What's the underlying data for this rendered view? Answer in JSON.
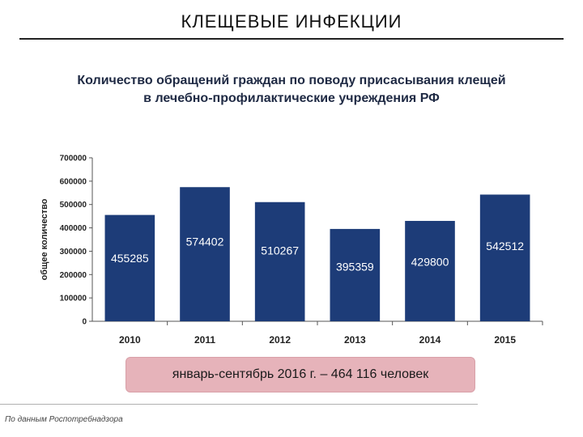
{
  "slide": {
    "title": "КЛЕЩЕВЫЕ ИНФЕКЦИИ",
    "heading_line1": "Количество обращений граждан по поводу присасывания клещей",
    "heading_line2": "в лечебно-профилактические учреждения РФ",
    "note": "январь-сентябрь 2016 г. – 464 116 человек",
    "source": "По данным Роспотребнадзора"
  },
  "colors": {
    "bar": "#1d3c78",
    "bar_label": "#ffffff",
    "note_background": "#e6b3ba"
  },
  "chart_data": {
    "type": "bar",
    "title": "",
    "xlabel": "",
    "ylabel": "общее количество",
    "ylim": [
      0,
      700000
    ],
    "yticks": [
      "0",
      "100000",
      "200000",
      "300000",
      "400000",
      "500000",
      "600000",
      "700000"
    ],
    "categories": [
      "2010",
      "2011",
      "2012",
      "2013",
      "2014",
      "2015"
    ],
    "values": [
      455285,
      574402,
      510267,
      395359,
      429800,
      542512
    ],
    "data_labels": [
      "455285",
      "574402",
      "510267",
      "395359",
      "429800",
      "542512"
    ],
    "grid": false,
    "legend": "none"
  }
}
